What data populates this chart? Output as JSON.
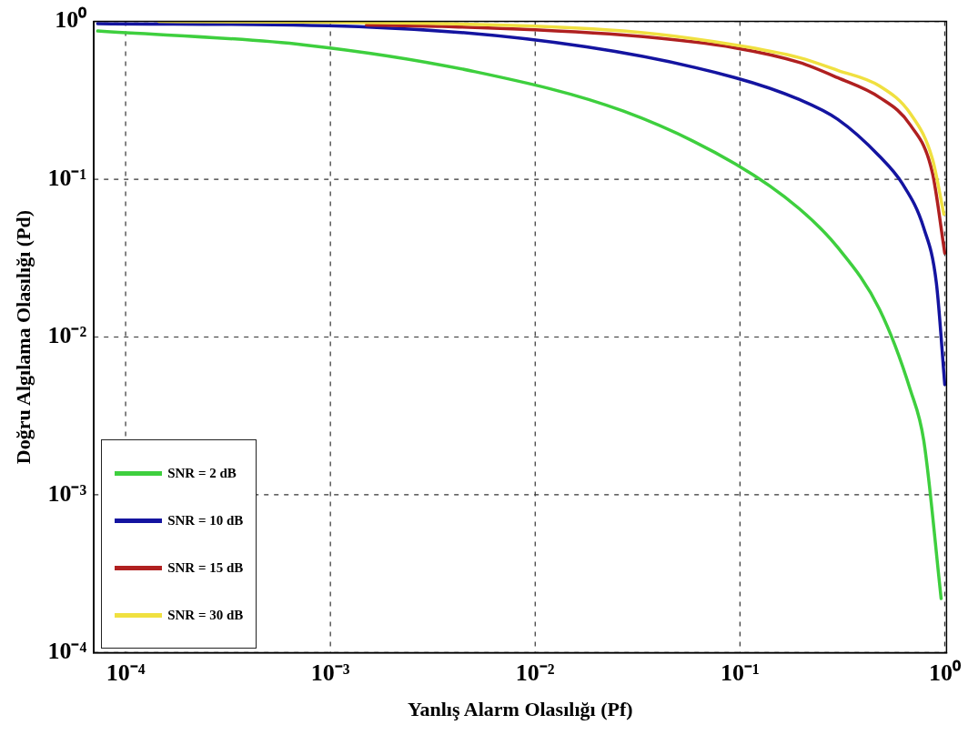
{
  "chart_data": {
    "type": "line",
    "xlabel": "Yanlış Alarm Olasılığı (Pf)",
    "ylabel": "Doğru Algılama Olasılığı (Pd)",
    "log": "xy",
    "grid": true,
    "legend": "bottom left",
    "marker": "none",
    "line_style": "solid",
    "xlim": [
      7.3e-05,
      1.02
    ],
    "ylim": [
      0.0001,
      1
    ],
    "xticks": [
      {
        "value": 0.0001,
        "label": "10⁻⁴"
      },
      {
        "value": 0.001,
        "label": "10⁻³"
      },
      {
        "value": 0.01,
        "label": "10⁻²"
      },
      {
        "value": 0.1,
        "label": "10⁻¹"
      },
      {
        "value": 1,
        "label": "10⁰"
      }
    ],
    "yticks": [
      {
        "value": 0.0001,
        "label": "10⁻⁴"
      },
      {
        "value": 0.001,
        "label": "10⁻³"
      },
      {
        "value": 0.01,
        "label": "10⁻²"
      },
      {
        "value": 0.1,
        "label": "10⁻¹"
      },
      {
        "value": 1,
        "label": "10⁰"
      }
    ],
    "series": [
      {
        "name": "SNR = 2 dB",
        "color": "#3ecf3e",
        "x": [
          7.3e-05,
          0.00075,
          0.0051,
          0.027,
          0.095,
          0.195,
          0.3,
          0.48,
          0.68,
          0.79,
          0.96
        ],
        "values": [
          0.87,
          0.71,
          0.48,
          0.27,
          0.125,
          0.065,
          0.037,
          0.015,
          0.0046,
          0.0022,
          0.00022
        ]
      },
      {
        "name": "SNR = 10 dB",
        "color": "#1414a0",
        "x": [
          7.3e-05,
          0.0016,
          0.0178,
          0.095,
          0.195,
          0.3,
          0.48,
          0.62,
          0.79,
          0.91,
          1.0
        ],
        "values": [
          0.97,
          0.92,
          0.69,
          0.44,
          0.32,
          0.24,
          0.14,
          0.094,
          0.049,
          0.022,
          0.005
        ]
      },
      {
        "name": "SNR = 15 dB",
        "color": "#b02020",
        "x": [
          0.0015,
          0.0035,
          0.027,
          0.095,
          0.195,
          0.3,
          0.48,
          0.68,
          0.87,
          1.0
        ],
        "values": [
          0.95,
          0.93,
          0.82,
          0.68,
          0.55,
          0.44,
          0.33,
          0.22,
          0.11,
          0.034
        ]
      },
      {
        "name": "SNR = 30 dB",
        "color": "#f0e040",
        "x": [
          0.000145,
          0.0035,
          0.027,
          0.095,
          0.195,
          0.3,
          0.48,
          0.68,
          0.87,
          0.99
        ],
        "values": [
          1.0,
          0.97,
          0.87,
          0.71,
          0.59,
          0.49,
          0.39,
          0.26,
          0.135,
          0.06
        ]
      }
    ]
  }
}
